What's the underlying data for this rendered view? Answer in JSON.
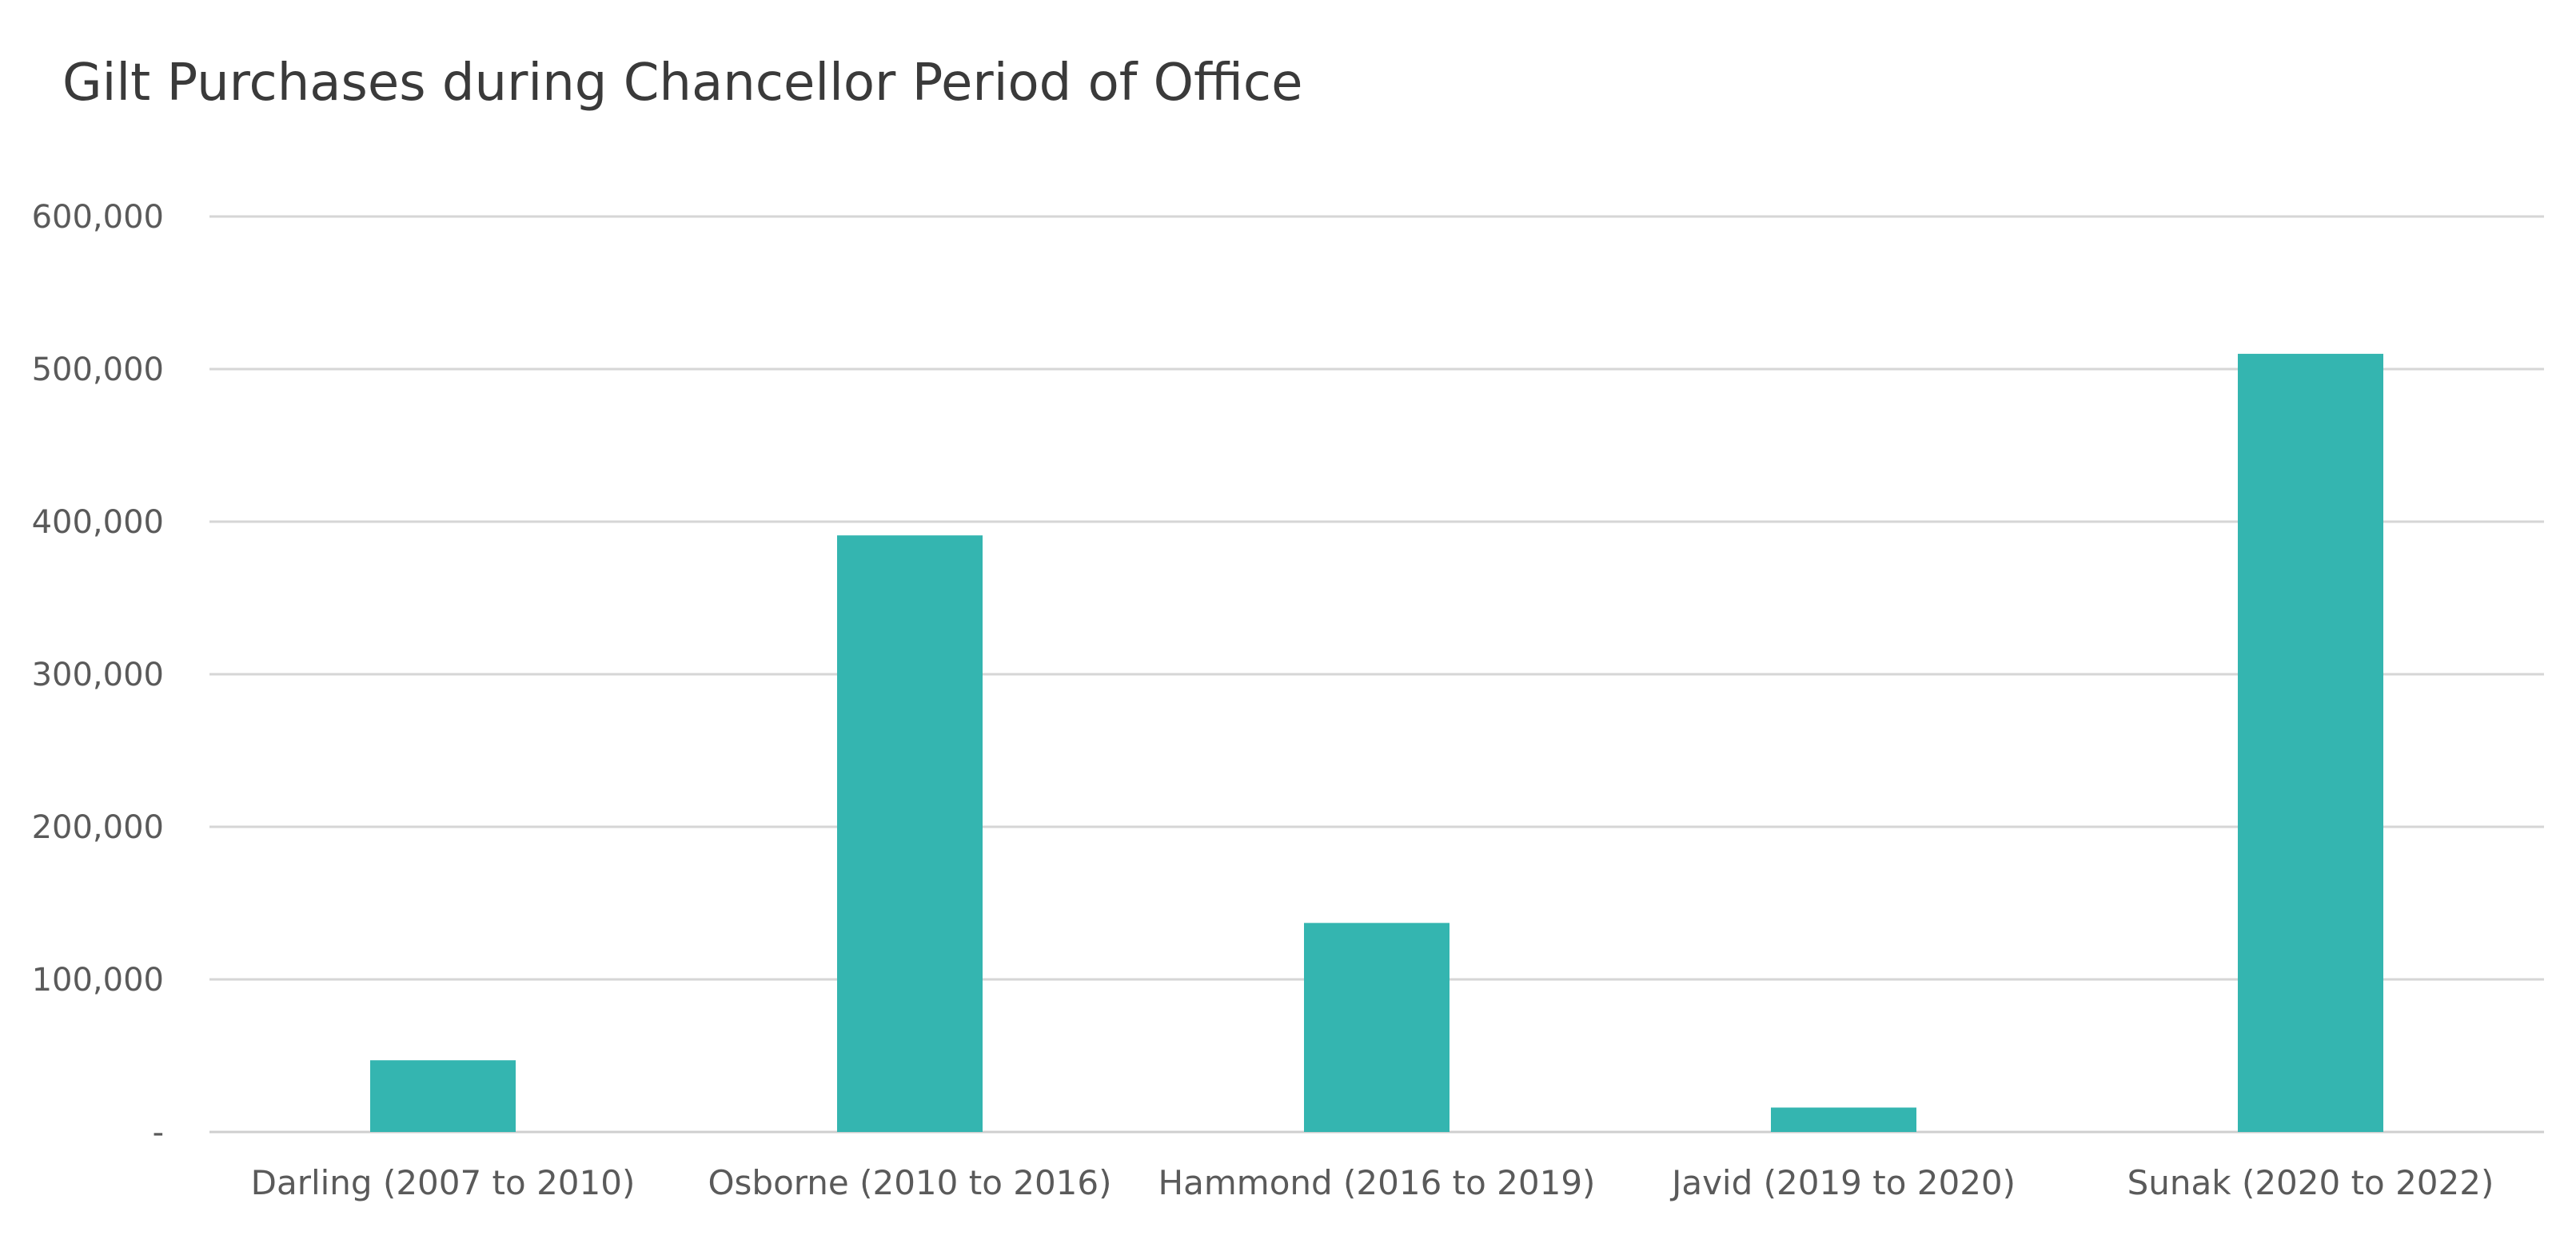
{
  "chart_data": {
    "type": "bar",
    "title": "Gilt Purchases during Chancellor Period of Office",
    "xlabel": "",
    "ylabel": "",
    "categories": [
      "Darling (2007 to 2010)",
      "Osborne (2010 to 2016)",
      "Hammond (2016 to 2019)",
      "Javid (2019 to 2020)",
      "Sunak (2020 to 2022)"
    ],
    "series": [
      {
        "values": [
          47000,
          391000,
          137000,
          16000,
          510000
        ],
        "color": "#34b5b0"
      }
    ],
    "ylim": [
      0,
      600000
    ],
    "y_ticks": [
      0,
      100000,
      200000,
      300000,
      400000,
      500000,
      600000
    ],
    "y_tick_labels": [
      "-",
      "100,000",
      "200,000",
      "300,000",
      "400,000",
      "500,000",
      "600,000"
    ],
    "grid": true,
    "legend": "none"
  }
}
